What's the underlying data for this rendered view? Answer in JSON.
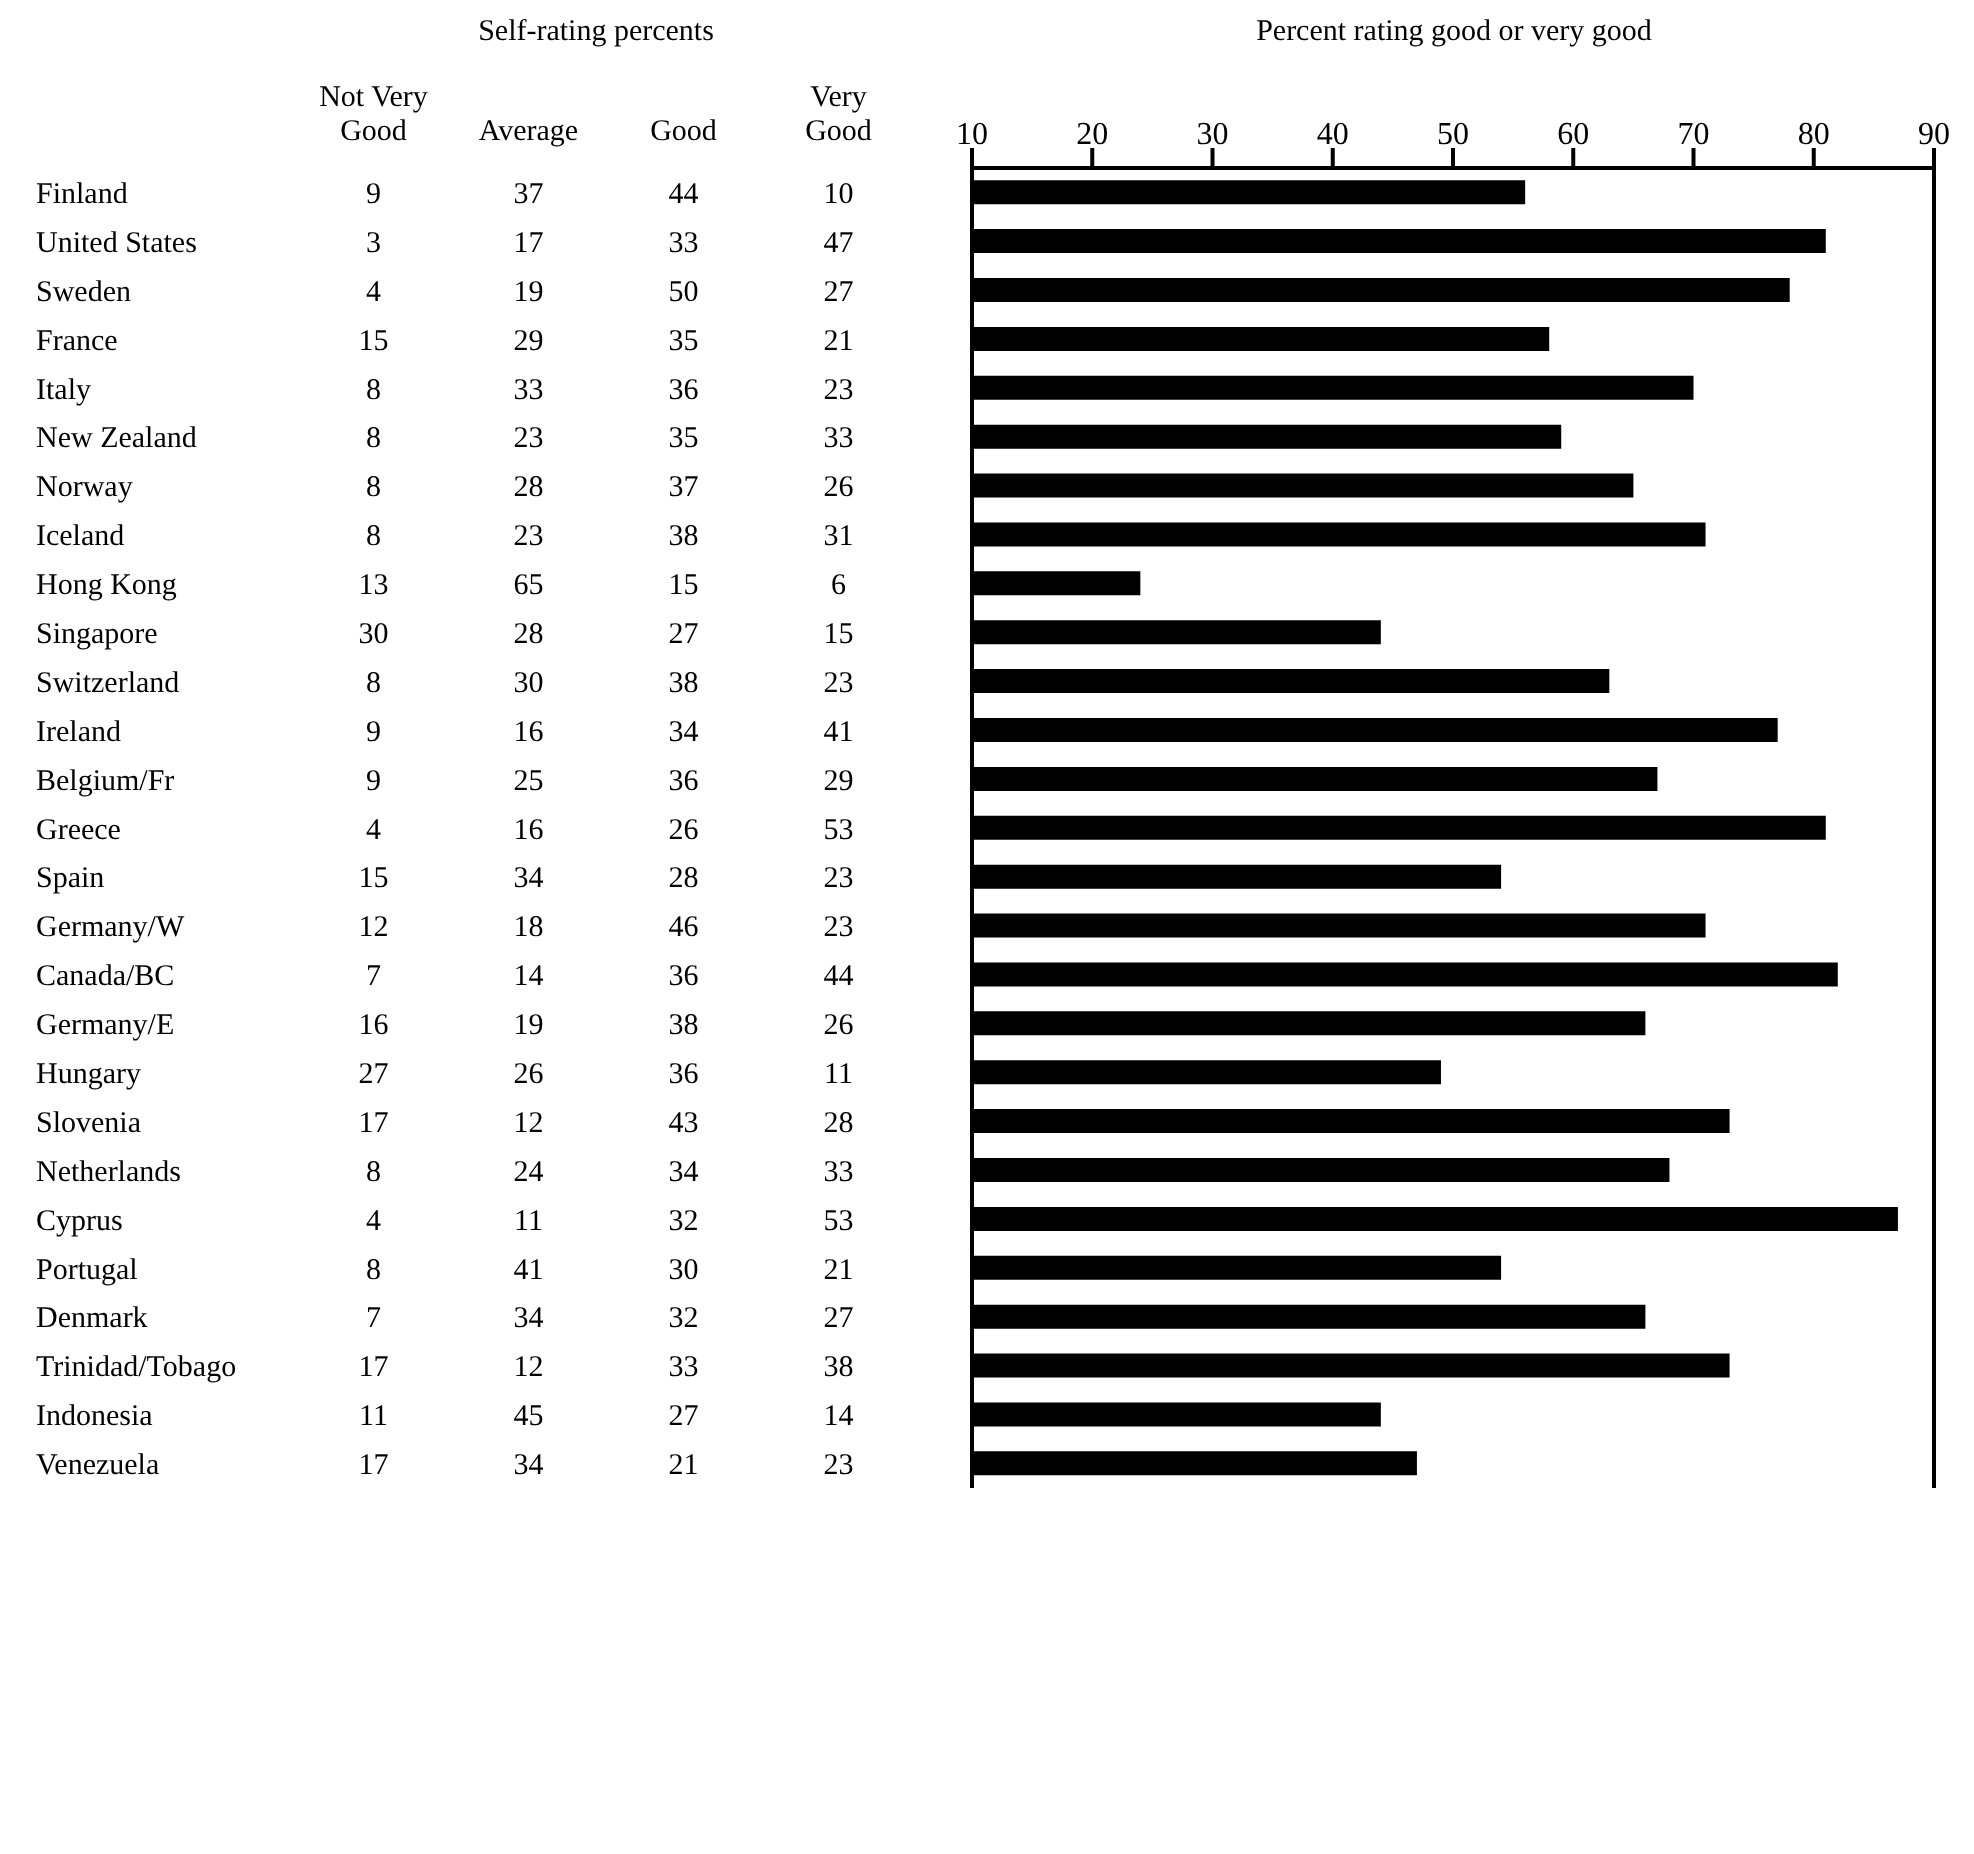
{
  "chart_data": [
    {
      "type": "heatmap",
      "title": "Self-rating percents",
      "categories": [
        "Not Very Good",
        "Average",
        "Good",
        "Very Good"
      ],
      "y_categories": [
        "Finland",
        "United States",
        "Sweden",
        "France",
        "Italy",
        "New Zealand",
        "Norway",
        "Iceland",
        "Hong Kong",
        "Singapore",
        "Switzerland",
        "Ireland",
        "Belgium/Fr",
        "Greece",
        "Spain",
        "Germany/W",
        "Canada/BC",
        "Germany/E",
        "Hungary",
        "Slovenia",
        "Netherlands",
        "Cyprus",
        "Portugal",
        "Denmark",
        "Trinidad/Tobago",
        "Indonesia",
        "Venezuela"
      ],
      "cells": [
        [
          9,
          37,
          44,
          10
        ],
        [
          3,
          17,
          33,
          47
        ],
        [
          4,
          19,
          50,
          27
        ],
        [
          15,
          29,
          35,
          21
        ],
        [
          8,
          33,
          36,
          23
        ],
        [
          8,
          23,
          35,
          33
        ],
        [
          8,
          28,
          37,
          26
        ],
        [
          8,
          23,
          38,
          31
        ],
        [
          13,
          65,
          15,
          6
        ],
        [
          30,
          28,
          27,
          15
        ],
        [
          8,
          30,
          38,
          23
        ],
        [
          9,
          16,
          34,
          41
        ],
        [
          9,
          25,
          36,
          29
        ],
        [
          4,
          16,
          26,
          53
        ],
        [
          15,
          34,
          28,
          23
        ],
        [
          12,
          18,
          46,
          23
        ],
        [
          7,
          14,
          36,
          44
        ],
        [
          16,
          19,
          38,
          26
        ],
        [
          27,
          26,
          36,
          11
        ],
        [
          17,
          12,
          43,
          28
        ],
        [
          8,
          24,
          34,
          33
        ],
        [
          4,
          11,
          32,
          53
        ],
        [
          8,
          41,
          30,
          21
        ],
        [
          7,
          34,
          32,
          27
        ],
        [
          17,
          12,
          33,
          38
        ],
        [
          11,
          45,
          27,
          14
        ],
        [
          17,
          34,
          21,
          23
        ]
      ],
      "data_labels": true
    },
    {
      "type": "bar",
      "orientation": "horizontal",
      "title": "Percent rating good or very good",
      "categories": [
        null,
        null,
        null,
        null,
        null,
        null,
        null,
        null,
        null,
        null,
        null,
        null,
        null,
        null,
        null,
        null,
        null,
        null,
        null,
        null,
        null,
        null,
        null,
        null,
        null,
        null,
        null
      ],
      "values": [
        56,
        81,
        78,
        58,
        70,
        59,
        65,
        71,
        24,
        44,
        63,
        77,
        67,
        81,
        54,
        71,
        82,
        66,
        49,
        73,
        68,
        87,
        54,
        66,
        73,
        44,
        47
      ],
      "color": "#000000",
      "xlim": [
        10,
        90
      ],
      "xticks": [
        10,
        20,
        30,
        40,
        50,
        60,
        70,
        80,
        90
      ],
      "tick_labels": "x"
    }
  ]
}
